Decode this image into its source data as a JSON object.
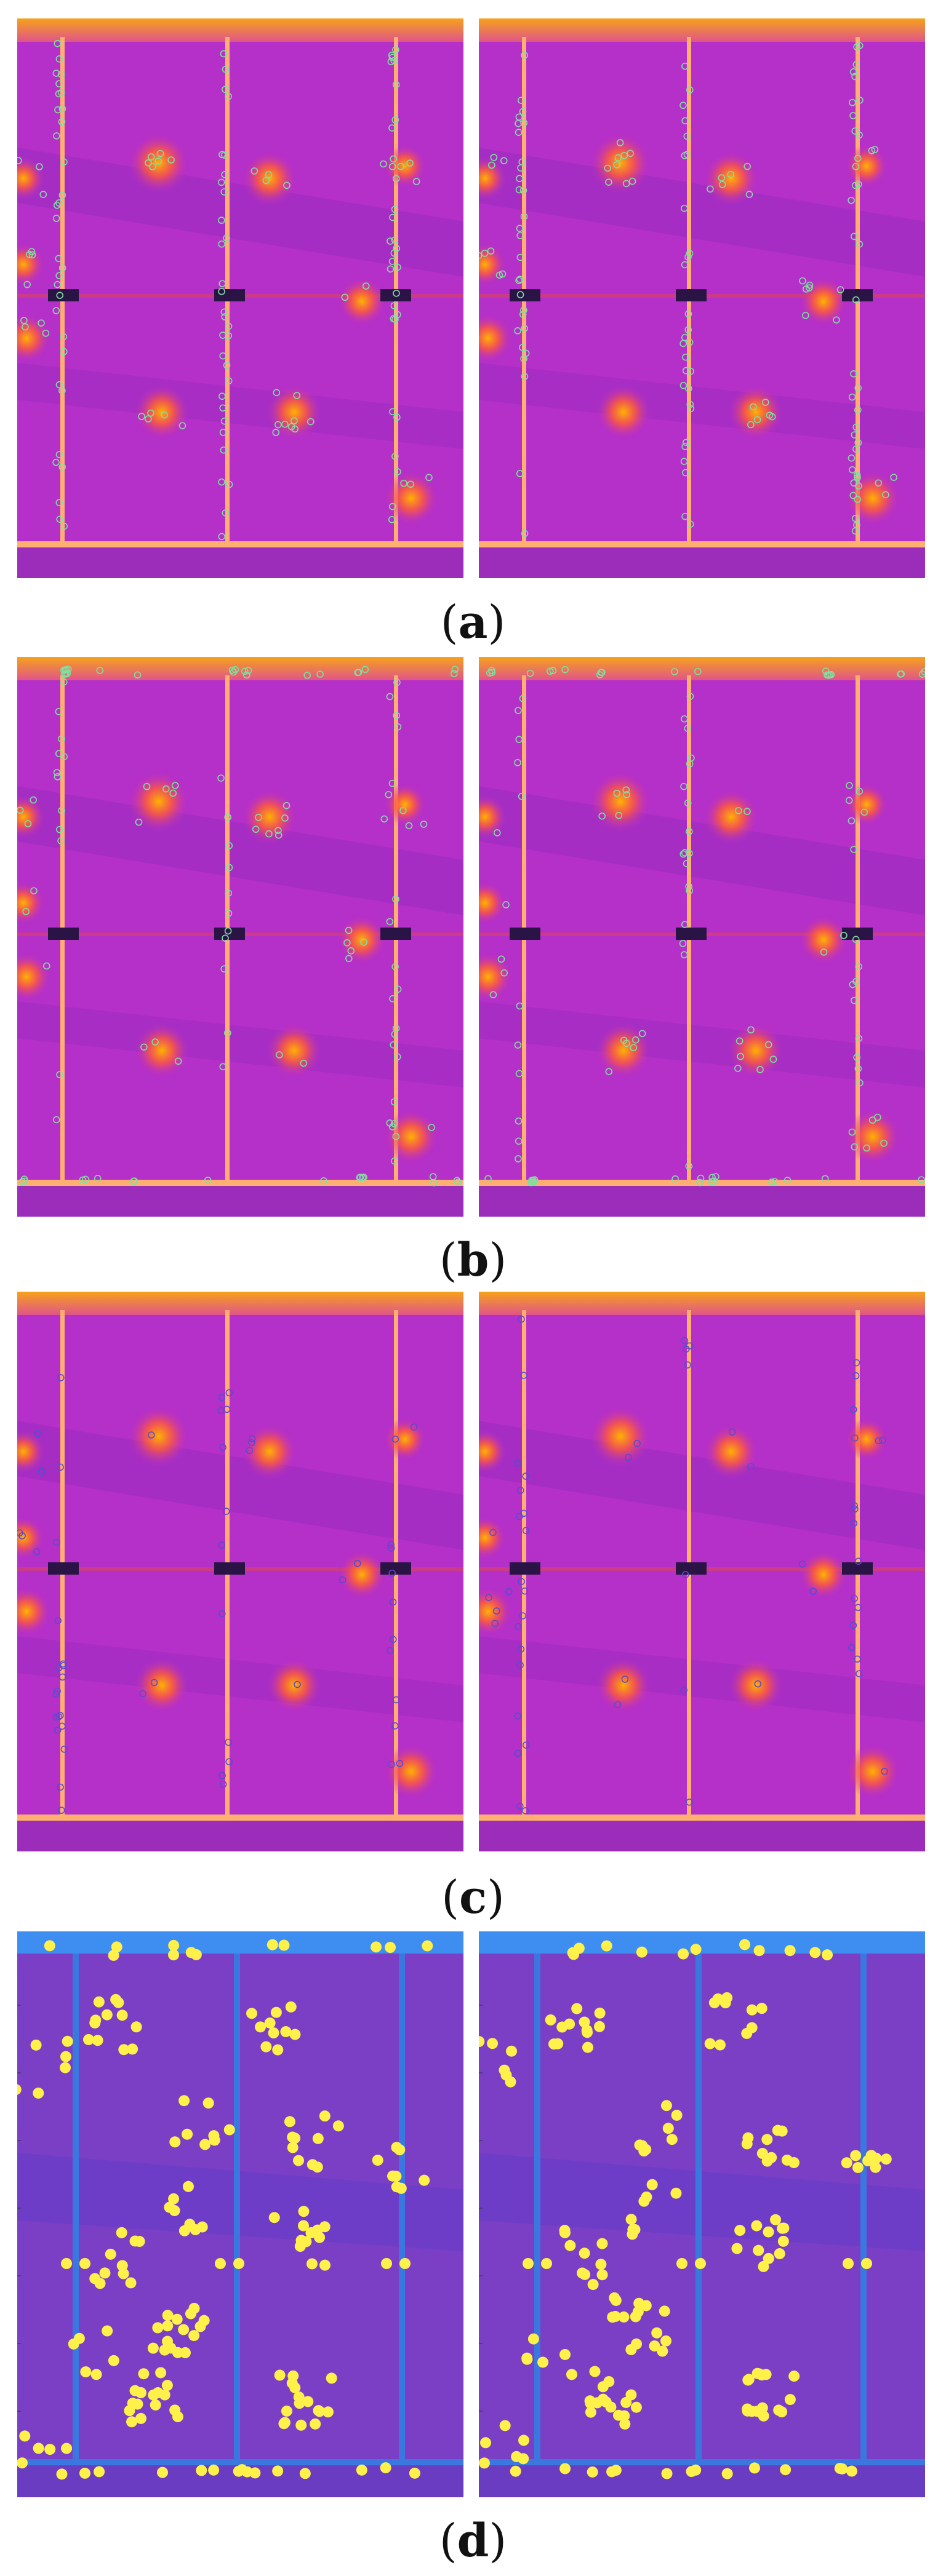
{
  "figure": {
    "rows": [
      {
        "id": "a",
        "caption_open": "(",
        "caption_letter": "a",
        "caption_close": ")"
      },
      {
        "id": "b",
        "caption_open": "(",
        "caption_letter": "b",
        "caption_close": ")"
      },
      {
        "id": "c",
        "caption_open": "(",
        "caption_letter": "c",
        "caption_close": ")"
      },
      {
        "id": "d",
        "caption_open": "(",
        "caption_letter": "d",
        "caption_close": ")"
      }
    ],
    "colors": {
      "thermal_base": "#b52fc9",
      "thermal_dark": "#8a2bb8",
      "thermal_hot": "#ffb300",
      "thermal_top": "#f6a21a",
      "keypoint_ring": "#7fe0a0",
      "blue_panel_base": "#7a3fc4",
      "blue_frame": "#3a78e0",
      "yellow_marker": "#fff04a"
    }
  }
}
